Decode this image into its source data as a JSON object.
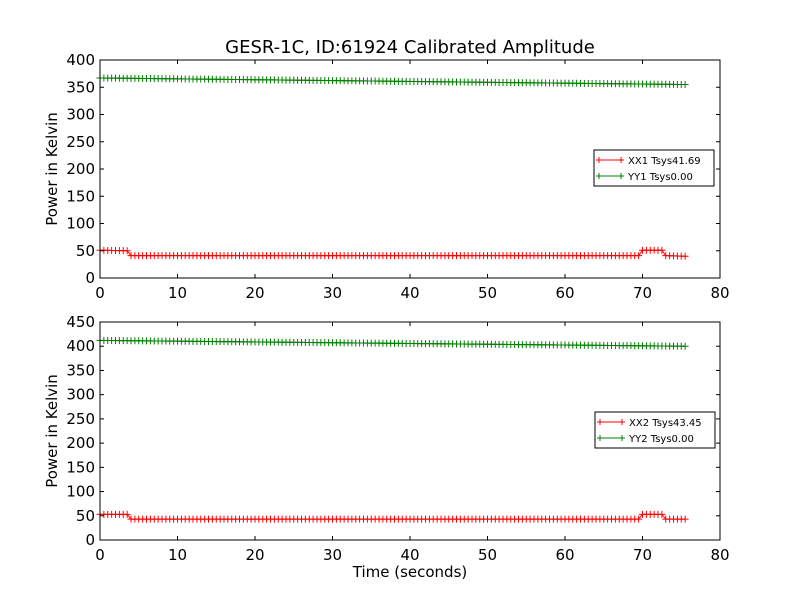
{
  "title": "GESR-1C, ID:61924 Calibrated Amplitude",
  "chart_data": [
    {
      "type": "line",
      "title": "GESR-1C, ID:61924 Calibrated Amplitude",
      "xlabel": "",
      "ylabel": "Power in Kelvin",
      "xlim": [
        0,
        80
      ],
      "ylim": [
        0,
        400
      ],
      "xticks": [
        "0",
        "10",
        "20",
        "30",
        "40",
        "50",
        "60",
        "70",
        "80"
      ],
      "yticks": [
        "0",
        "50",
        "100",
        "150",
        "200",
        "250",
        "300",
        "350",
        "400"
      ],
      "grid": false,
      "legend_position": "center-right",
      "x_start": 0,
      "x_step": 0.5,
      "x_end": 75.5,
      "series": [
        {
          "name": "XX1 Tsys41.69",
          "color": "#ff0000",
          "marker": "plus",
          "segments": [
            {
              "from": 0,
              "to": 3.5,
              "y0": 51,
              "y1": 50
            },
            {
              "from": 4,
              "to": 69.5,
              "y0": 41,
              "y1": 41
            },
            {
              "from": 70,
              "to": 72.5,
              "y0": 51,
              "y1": 51
            },
            {
              "from": 73,
              "to": 75.5,
              "y0": 41,
              "y1": 40
            }
          ]
        },
        {
          "name": "YY1 Tsys0.00",
          "color": "#008000",
          "marker": "plus",
          "segments": [
            {
              "from": 0,
              "to": 75.5,
              "y0": 367,
              "y1": 355
            }
          ]
        }
      ]
    },
    {
      "type": "line",
      "title": "",
      "xlabel": "Time (seconds)",
      "ylabel": "Power in Kelvin",
      "xlim": [
        0,
        80
      ],
      "ylim": [
        0,
        450
      ],
      "xticks": [
        "0",
        "10",
        "20",
        "30",
        "40",
        "50",
        "60",
        "70",
        "80"
      ],
      "yticks": [
        "0",
        "50",
        "100",
        "150",
        "200",
        "250",
        "300",
        "350",
        "400",
        "450"
      ],
      "grid": false,
      "legend_position": "center-right",
      "x_start": 0,
      "x_step": 0.5,
      "x_end": 75.5,
      "series": [
        {
          "name": "XX2 Tsys43.45",
          "color": "#ff0000",
          "marker": "plus",
          "segments": [
            {
              "from": 0,
              "to": 3.5,
              "y0": 53,
              "y1": 53
            },
            {
              "from": 4,
              "to": 69.5,
              "y0": 43,
              "y1": 43
            },
            {
              "from": 70,
              "to": 72.5,
              "y0": 53,
              "y1": 53
            },
            {
              "from": 73,
              "to": 75.5,
              "y0": 43,
              "y1": 43
            }
          ]
        },
        {
          "name": "YY2 Tsys0.00",
          "color": "#008000",
          "marker": "plus",
          "segments": [
            {
              "from": 0,
              "to": 75.5,
              "y0": 412,
              "y1": 400
            }
          ]
        }
      ]
    }
  ]
}
